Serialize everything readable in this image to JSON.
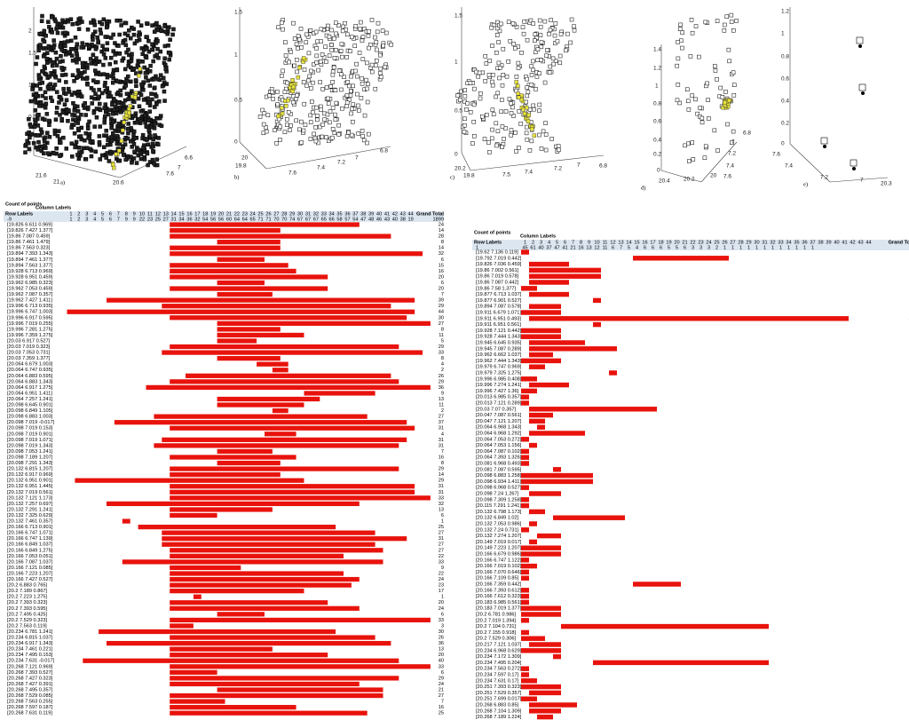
{
  "panels": [
    {
      "label": "a)",
      "ticks": [
        "0",
        "0.5",
        "1",
        "1.5",
        "2",
        "21.6",
        "21",
        "20.6",
        "7.6",
        "7",
        "6.6"
      ]
    },
    {
      "label": "b)",
      "ticks": [
        "0",
        "0.5",
        "1",
        "1.5",
        "20",
        "19.8",
        "7.6",
        "7.4",
        "7.2",
        "7",
        "6.8"
      ]
    },
    {
      "label": "c)",
      "ticks": [
        "0",
        "0.5",
        "1",
        "1.5",
        "20.2",
        "19.8",
        "7.5",
        "7.4",
        "7.2",
        "7",
        "6.8"
      ]
    },
    {
      "label": "d)",
      "ticks": [
        "0",
        "0.2",
        "0.4",
        "0.6",
        "0.8",
        "1",
        "1.2",
        "1.4",
        "20.4",
        "20.2",
        "20",
        "7.6",
        "7.4",
        "7.2",
        "7",
        "6.8"
      ]
    },
    {
      "label": "e)",
      "ticks": [
        "0",
        "0.2",
        "0.4",
        "0.6",
        "0.8",
        "1",
        "1.2",
        "7.6",
        "7.4",
        "7.2",
        "7",
        "20.3"
      ]
    }
  ],
  "left_table": {
    "title": "Count of points",
    "column_header": "Column Labels",
    "row_header": "Row Labels",
    "grand_total": "Grand Total",
    "columns": [
      1,
      2,
      3,
      4,
      5,
      6,
      7,
      8,
      9,
      10,
      11,
      12,
      13,
      14,
      15,
      16,
      17,
      18,
      19,
      20,
      21,
      22,
      23,
      24,
      25,
      26,
      27,
      28,
      29,
      30,
      31,
      32,
      33,
      34,
      35,
      36,
      37,
      38,
      39,
      40,
      41,
      42,
      43,
      44
    ],
    "summary": {
      "label": "-9",
      "counts": [
        1,
        2,
        3,
        4,
        5,
        6,
        7,
        9,
        9,
        22,
        23,
        25,
        27,
        31,
        34,
        36,
        32,
        54,
        56,
        56,
        60,
        64,
        64,
        65,
        71,
        71,
        70,
        70,
        74,
        67,
        67,
        67,
        65,
        66,
        58,
        57,
        54,
        47,
        48,
        46,
        43,
        40,
        38,
        19
      ],
      "total": 1899
    },
    "rows": [
      [
        "[19.826 6.611 0.969]",
        14,
        24
      ],
      [
        "[19.826 7.427 1.377]",
        14,
        14
      ],
      [
        "[19.86 7.087 0.459]",
        14,
        28
      ],
      [
        "[19.86 7.461 1.479]",
        20,
        8
      ],
      [
        "[19.86 7.563 0.323]",
        14,
        14
      ],
      [
        "[19.894 7.393 1.343]",
        14,
        32
      ],
      [
        "[19.894 7.461 1.377]",
        20,
        6
      ],
      [
        "[19.894 7.563 1.377]",
        14,
        15
      ],
      [
        "[19.928 6.713 0.969]",
        14,
        16
      ],
      [
        "[19.928 6.951 0.459]",
        14,
        20
      ],
      [
        "[19.962 6.985 0.323]",
        20,
        6
      ],
      [
        "[19.962 7.053 0.459]",
        14,
        20
      ],
      [
        "[19.962 7.087 0.357]",
        20,
        7
      ],
      [
        "[19.962 7.427 1.411]",
        6,
        39
      ],
      [
        "[19.996 6.713 0.935]",
        13,
        29
      ],
      [
        "[19.996 6.747 1.003]",
        1,
        44
      ],
      [
        "[19.996 6.917 0.595]",
        14,
        30
      ],
      [
        "[19.996 7.019 0.255]",
        20,
        27
      ],
      [
        "[19.996 7.281 1.275]",
        20,
        8
      ],
      [
        "[19.996 7.359 1.275]",
        20,
        11
      ],
      [
        "[20.03 6.917 0.527]",
        20,
        5
      ],
      [
        "[20.03 7.019 0.323]",
        14,
        29
      ],
      [
        "[20.03 7.053 0.731]",
        13,
        33
      ],
      [
        "[20.03 7.359 1.377]",
        20,
        8
      ],
      [
        "[20.064 6.679 1.003]",
        25,
        4
      ],
      [
        "[20.064 6.747 0.935]",
        27,
        2
      ],
      [
        "[20.064 6.883 0.595]",
        16,
        26
      ],
      [
        "[20.064 6.883 1.343]",
        14,
        29
      ],
      [
        "[20.064 6.917 1.275]",
        11,
        36
      ],
      [
        "[20.064 6.951 1.411]",
        31,
        9
      ],
      [
        "[20.064 7.257 1.241]",
        20,
        13
      ],
      [
        "[20.098 6.645 0.901]",
        20,
        11
      ],
      [
        "[20.098 6.849 1.105]",
        27,
        2
      ],
      [
        "[20.098 6.883 1.003]",
        12,
        27
      ],
      [
        "[20.098 7.019 -0.017]",
        7,
        37
      ],
      [
        "[20.098 7.019 0.153]",
        14,
        31
      ],
      [
        "[20.098 7.019 0.901]",
        26,
        4
      ],
      [
        "[20.098 7.019 1.071]",
        13,
        31
      ],
      [
        "[20.098 7.019 1.343]",
        12,
        31
      ],
      [
        "[20.098 7.053 1.241]",
        20,
        7
      ],
      [
        "[20.098 7.189 1.207]",
        14,
        16
      ],
      [
        "[20.098 7.291 1.343]",
        20,
        8
      ],
      [
        "[20.132 6.815 1.207]",
        14,
        29
      ],
      [
        "[20.132 6.917 0.969]",
        14,
        14
      ],
      [
        "[20.132 6.951 0.901]",
        2,
        29
      ],
      [
        "[20.132 6.951 1.445]",
        14,
        31
      ],
      [
        "[20.132 7.019 0.561]",
        14,
        31
      ],
      [
        "[20.132 7.121 1.173]",
        14,
        33
      ],
      [
        "[20.132 7.257 0.697]",
        6,
        32
      ],
      [
        "[20.132 7.291 1.241]",
        14,
        13
      ],
      [
        "[20.132 7.325 0.629]",
        14,
        6
      ],
      [
        "[20.132 7.461 0.357]",
        8,
        1
      ],
      [
        "[20.166 6.713 0.901]",
        10,
        25
      ],
      [
        "[20.166 6.747 1.071]",
        13,
        27
      ],
      [
        "[20.166 6.747 1.139]",
        13,
        31
      ],
      [
        "[20.166 6.849 1.037]",
        13,
        27
      ],
      [
        "[20.166 6.849 1.275]",
        14,
        27
      ],
      [
        "[20.166 7.053 0.051]",
        14,
        22
      ],
      [
        "[20.166 7.087 1.037]",
        8,
        33
      ],
      [
        "[20.166 7.121 0.085]",
        14,
        9
      ],
      [
        "[20.166 7.223 1.207]",
        14,
        22
      ],
      [
        "[20.166 7.427 0.527]",
        14,
        24
      ],
      [
        "[20.2 6.883 0.765]",
        14,
        23
      ],
      [
        "[20.2 7.189 0.867]",
        14,
        17
      ],
      [
        "[20.2 7.223 1.275]",
        17,
        1
      ],
      [
        "[20.2 7.393 0.323]",
        14,
        20
      ],
      [
        "[20.2 7.393 0.595]",
        14,
        24
      ],
      [
        "[20.2 7.495 0.425]",
        20,
        6
      ],
      [
        "[20.2 7.529 0.323]",
        14,
        33
      ],
      [
        "[20.2 7.563 0.119]",
        14,
        3
      ],
      [
        "[20.234 6.781 1.241]",
        5,
        30
      ],
      [
        "[20.234 6.815 1.037]",
        14,
        26
      ],
      [
        "[20.234 6.917 1.343]",
        6,
        36
      ],
      [
        "[20.234 7.461 0.221]",
        14,
        13
      ],
      [
        "[20.234 7.495 0.153]",
        14,
        20
      ],
      [
        "[20.234 7.631 -0.017]",
        3,
        40
      ],
      [
        "[20.268 7.121 0.969]",
        14,
        33
      ],
      [
        "[20.268 7.393 0.527]",
        14,
        6
      ],
      [
        "[20.268 7.427 0.323]",
        14,
        29
      ],
      [
        "[20.268 7.427 0.391]",
        14,
        24
      ],
      [
        "[20.268 7.495 0.357]",
        20,
        21
      ],
      [
        "[20.268 7.529 0.085]",
        14,
        27
      ],
      [
        "[20.268 7.563 0.255]",
        14,
        7
      ],
      [
        "[20.268 7.597 0.187]",
        14,
        16
      ],
      [
        "[20.268 7.631 0.119]",
        14,
        25
      ]
    ]
  },
  "right_table": {
    "title": "Count of points",
    "column_header": "Column Labels",
    "row_header": "Row Labels",
    "grand_total": "Grand Tota",
    "columns": [
      1,
      2,
      3,
      4,
      5,
      6,
      7,
      8,
      9,
      10,
      11,
      12,
      13,
      14,
      15,
      16,
      17,
      18,
      19,
      20,
      21,
      22,
      23,
      24,
      25,
      26,
      27,
      28,
      29,
      30,
      31,
      32,
      33,
      34,
      35,
      36,
      37,
      38,
      39,
      40,
      41,
      42,
      43,
      44
    ],
    "summary": {
      "label": "1",
      "counts": [
        45,
        61,
        40,
        37,
        47,
        41,
        21,
        16,
        13,
        12,
        11,
        6,
        7,
        5,
        4,
        6,
        6,
        6,
        5,
        5,
        6,
        3,
        3,
        3,
        2,
        1,
        1,
        1,
        1,
        1,
        1,
        1,
        1,
        1,
        1,
        1,
        1
      ]
    },
    "rows": [
      [
        "[19.62 7.136 0.119]",
        1,
        1
      ],
      [
        "[19.792 7.019 0.442]",
        15,
        12
      ],
      [
        "[19.826 7.036 0.459]",
        2,
        5
      ],
      [
        "[19.86 7.002 0.561]",
        2,
        9
      ],
      [
        "[19.86 7.019 0.578]",
        2,
        9
      ],
      [
        "[19.86 7.087 0.442]",
        2,
        5
      ],
      [
        "[19.86 7.58 1.377]",
        1,
        2
      ],
      [
        "[19.877 6.713 1.037]",
        2,
        5
      ],
      [
        "[19.877 6.901 0.527]",
        10,
        1
      ],
      [
        "[19.894 7.087 0.578]",
        2,
        4
      ],
      [
        "[19.911 6.679 1.071]",
        1,
        5
      ],
      [
        "[19.911 6.951 0.493]",
        2,
        40
      ],
      [
        "[19.911 6.951 0.561]",
        10,
        1
      ],
      [
        "[19.928 7.121 0.442]",
        1,
        5
      ],
      [
        "[19.928 7.444 1.343]",
        1,
        5
      ],
      [
        "[19.945 6.645 0.935]",
        2,
        7
      ],
      [
        "[19.945 7.087 0.289]",
        2,
        11
      ],
      [
        "[19.962 6.662 1.037]",
        2,
        3
      ],
      [
        "[19.962 7.444 1.343]",
        1,
        5
      ],
      [
        "[19.979 6.747 0.969]",
        2,
        2
      ],
      [
        "[19.979 7.325 1.275]",
        12,
        1
      ],
      [
        "[19.996 6.985 0.408]",
        1,
        2
      ],
      [
        "[19.996 7.274 1.241]",
        2,
        5
      ],
      [
        "[19.996 7.427 1.36]",
        1,
        2
      ],
      [
        "[20.013 6.985 0.357]",
        1,
        1
      ],
      [
        "[20.013 7.121 0.289]",
        1,
        1
      ],
      [
        "[20.03 7.07 0.357]",
        2,
        16
      ],
      [
        "[20.047 7.087 0.561]",
        2,
        3
      ],
      [
        "[20.047 7.121 1.207]",
        2,
        2
      ],
      [
        "[20.064 6.968 1.343]",
        3,
        1
      ],
      [
        "[20.064 6.968 1.292]",
        2,
        7
      ],
      [
        "[20.064 7.053 0.272]",
        1,
        1
      ],
      [
        "[20.064 7.053 1.156]",
        2,
        1
      ],
      [
        "[20.064 7.087 0.102]",
        1,
        1
      ],
      [
        "[20.064 7.393 1.326]",
        1,
        1
      ],
      [
        "[20.081 6.968 0.493]",
        1,
        1
      ],
      [
        "[20.081 7.087 0.595]",
        5,
        1
      ],
      [
        "[20.098 6.883 1.258]",
        1,
        9
      ],
      [
        "[20.098 6.934 1.411]",
        1,
        9
      ],
      [
        "[20.098 6.968 0.527]",
        1,
        1
      ],
      [
        "[20.098 7.24 1.267]",
        2,
        4
      ],
      [
        "[20.098 7.309 1.258]",
        1,
        1
      ],
      [
        "[20.115 7.291 1.241]",
        1,
        1
      ],
      [
        "[20.132 6.798 1.173]",
        2,
        2
      ],
      [
        "[20.132 6.849 1.02]",
        5,
        9
      ],
      [
        "[20.132 7.053 0.986]",
        2,
        1
      ],
      [
        "[20.132 7.24 0.731]",
        1,
        1
      ],
      [
        "[20.132 7.274 1.207]",
        3,
        3
      ],
      [
        "[20.149 7.019 0.017]",
        2,
        1
      ],
      [
        "[20.149 7.223 1.207]",
        1,
        5
      ],
      [
        "[20.166 6.679 0.986]",
        1,
        5
      ],
      [
        "[20.166 6.747 1.122]",
        1,
        1
      ],
      [
        "[20.166 7.019 0.102]",
        1,
        2
      ],
      [
        "[20.166 7.070 0.646]",
        1,
        1
      ],
      [
        "[20.166 7.109 0.85]",
        1,
        1
      ],
      [
        "[20.166 7.359 0.442]",
        15,
        6
      ],
      [
        "[20.166 7.393 0.612]",
        1,
        1
      ],
      [
        "[20.166 7.612 0.323]",
        1,
        1
      ],
      [
        "[20.183 6.985 0.561]",
        1,
        1
      ],
      [
        "[20.183 7.019 1.377]",
        1,
        5
      ],
      [
        "[20.2 6.781 0.986]",
        1,
        5
      ],
      [
        "[20.2 7.019 1.394]",
        1,
        1
      ],
      [
        "[20.2 7.104 0.731]",
        6,
        26
      ],
      [
        "[20.2 7.155 0.918]",
        1,
        1
      ],
      [
        "[20.2 7.529 0.306]",
        1,
        3
      ],
      [
        "[20.217 7.121 1.037]",
        2,
        4
      ],
      [
        "[20.234 6.968 0.629]",
        1,
        5
      ],
      [
        "[20.234 7.172 1.309]",
        5,
        1
      ],
      [
        "[20.234 7.495 0.204]",
        10,
        22
      ],
      [
        "[20.234 7.563 0.272]",
        1,
        1
      ],
      [
        "[20.234 7.597 0.17]",
        1,
        1
      ],
      [
        "[20.234 7.631 0.17]",
        1,
        2
      ],
      [
        "[20.251 7.393 0.323]",
        1,
        5
      ],
      [
        "[20.251 7.529 0.357]",
        2,
        4
      ],
      [
        "[20.251 7.699 0.017]",
        1,
        2
      ],
      [
        "[20.268 6.883 0.85]",
        2,
        6
      ],
      [
        "[20.268 7.104 1.309]",
        2,
        4
      ],
      [
        "[20.268 7.189 1.224]",
        3,
        2
      ]
    ]
  }
}
